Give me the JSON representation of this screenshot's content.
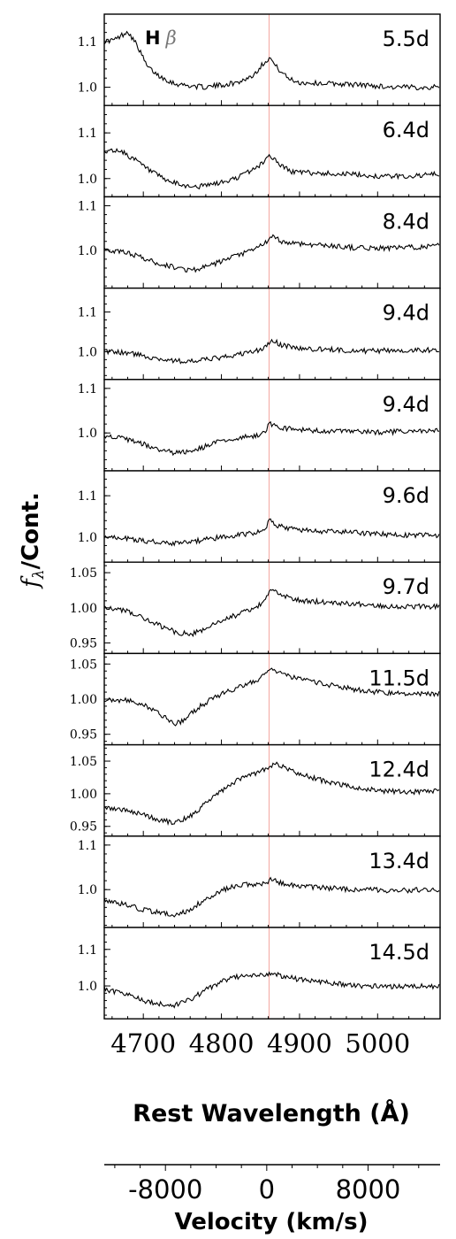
{
  "chart_data": {
    "type": "line",
    "line_label": {
      "bold": "H",
      "italic": "β"
    },
    "ylabel": {
      "symbol": "f",
      "subscript": "λ",
      "rest": "/Cont."
    },
    "xlabel": "Rest Wavelength (Å)",
    "xlim": [
      4650,
      5080
    ],
    "xticks": [
      4700,
      4800,
      4900,
      5000
    ],
    "reference_line": 4861,
    "velocity_axis": {
      "label": "Velocity (km/s)",
      "ticks": [
        {
          "value": -8000,
          "label": "-8000"
        },
        {
          "value": 0,
          "label": "0"
        },
        {
          "value": 8000,
          "label": "8000"
        }
      ],
      "range": [
        -12830,
        13690
      ]
    },
    "panels": [
      {
        "epoch": "5.5d",
        "ylim": [
          0.96,
          1.16
        ],
        "yticks": [
          1.0,
          1.1
        ],
        "yticklabels": [
          "1.0",
          "1.1"
        ],
        "profile": [
          [
            4650,
            1.1
          ],
          [
            4665,
            1.105
          ],
          [
            4680,
            1.123
          ],
          [
            4692,
            1.092
          ],
          [
            4705,
            1.045
          ],
          [
            4720,
            1.025
          ],
          [
            4740,
            1.008
          ],
          [
            4760,
            1.003
          ],
          [
            4780,
            1.0
          ],
          [
            4800,
            1.005
          ],
          [
            4820,
            1.01
          ],
          [
            4840,
            1.025
          ],
          [
            4855,
            1.055
          ],
          [
            4862,
            1.065
          ],
          [
            4870,
            1.045
          ],
          [
            4885,
            1.02
          ],
          [
            4900,
            1.01
          ],
          [
            4940,
            1.008
          ],
          [
            4980,
            1.005
          ],
          [
            5020,
            1.0
          ],
          [
            5080,
            1.0
          ]
        ]
      },
      {
        "epoch": "6.4d",
        "ylim": [
          0.96,
          1.16
        ],
        "yticks": [
          1.0,
          1.1
        ],
        "yticklabels": [
          "1.0",
          "1.1"
        ],
        "profile": [
          [
            4650,
            1.06
          ],
          [
            4670,
            1.062
          ],
          [
            4690,
            1.04
          ],
          [
            4710,
            1.015
          ],
          [
            4730,
            0.995
          ],
          [
            4750,
            0.985
          ],
          [
            4770,
            0.982
          ],
          [
            4790,
            0.988
          ],
          [
            4810,
            0.995
          ],
          [
            4830,
            1.01
          ],
          [
            4850,
            1.03
          ],
          [
            4862,
            1.052
          ],
          [
            4875,
            1.03
          ],
          [
            4890,
            1.015
          ],
          [
            4920,
            1.012
          ],
          [
            4960,
            1.01
          ],
          [
            5000,
            1.005
          ],
          [
            5040,
            1.005
          ],
          [
            5080,
            1.01
          ]
        ]
      },
      {
        "epoch": "8.4d",
        "ylim": [
          0.915,
          1.12
        ],
        "yticks": [
          1.0,
          1.1
        ],
        "yticklabels": [
          "1.0",
          "1.1"
        ],
        "profile": [
          [
            4650,
            1.0
          ],
          [
            4680,
            0.995
          ],
          [
            4700,
            0.982
          ],
          [
            4720,
            0.97
          ],
          [
            4740,
            0.962
          ],
          [
            4760,
            0.955
          ],
          [
            4780,
            0.962
          ],
          [
            4800,
            0.975
          ],
          [
            4820,
            0.988
          ],
          [
            4840,
            1.0
          ],
          [
            4855,
            1.015
          ],
          [
            4865,
            1.03
          ],
          [
            4880,
            1.018
          ],
          [
            4900,
            1.015
          ],
          [
            4940,
            1.01
          ],
          [
            4980,
            1.005
          ],
          [
            5020,
            1.005
          ],
          [
            5080,
            1.01
          ]
        ]
      },
      {
        "epoch": "9.4d",
        "ylim": [
          0.93,
          1.16
        ],
        "yticks": [
          1.0,
          1.1
        ],
        "yticklabels": [
          "1.0",
          "1.1"
        ],
        "profile": [
          [
            4650,
            1.0
          ],
          [
            4680,
            0.997
          ],
          [
            4700,
            0.99
          ],
          [
            4720,
            0.982
          ],
          [
            4740,
            0.977
          ],
          [
            4760,
            0.975
          ],
          [
            4780,
            0.98
          ],
          [
            4800,
            0.985
          ],
          [
            4820,
            0.992
          ],
          [
            4840,
            1.0
          ],
          [
            4855,
            1.008
          ],
          [
            4865,
            1.03
          ],
          [
            4875,
            1.018
          ],
          [
            4900,
            1.008
          ],
          [
            4940,
            1.005
          ],
          [
            4980,
            1.002
          ],
          [
            5020,
            1.003
          ],
          [
            5080,
            1.005
          ]
        ]
      },
      {
        "epoch": "9.4d",
        "ylim": [
          0.915,
          1.12
        ],
        "yticks": [
          1.0,
          1.1
        ],
        "yticklabels": [
          "1.0",
          "1.1"
        ],
        "profile": [
          [
            4650,
            0.995
          ],
          [
            4680,
            0.985
          ],
          [
            4700,
            0.975
          ],
          [
            4720,
            0.962
          ],
          [
            4740,
            0.955
          ],
          [
            4760,
            0.958
          ],
          [
            4780,
            0.97
          ],
          [
            4800,
            0.982
          ],
          [
            4820,
            0.988
          ],
          [
            4840,
            0.993
          ],
          [
            4855,
            1.0
          ],
          [
            4862,
            1.022
          ],
          [
            4870,
            1.015
          ],
          [
            4890,
            1.008
          ],
          [
            4920,
            1.005
          ],
          [
            4960,
            1.003
          ],
          [
            5000,
            1.002
          ],
          [
            5040,
            1.003
          ],
          [
            5080,
            1.005
          ]
        ]
      },
      {
        "epoch": "9.6d",
        "ylim": [
          0.94,
          1.16
        ],
        "yticks": [
          1.0,
          1.1
        ],
        "yticklabels": [
          "1.0",
          "1.1"
        ],
        "profile": [
          [
            4650,
            1.0
          ],
          [
            4680,
            0.997
          ],
          [
            4700,
            0.992
          ],
          [
            4720,
            0.988
          ],
          [
            4740,
            0.985
          ],
          [
            4760,
            0.988
          ],
          [
            4780,
            0.995
          ],
          [
            4800,
            1.0
          ],
          [
            4820,
            1.005
          ],
          [
            4840,
            1.01
          ],
          [
            4855,
            1.02
          ],
          [
            4862,
            1.04
          ],
          [
            4870,
            1.028
          ],
          [
            4890,
            1.02
          ],
          [
            4920,
            1.015
          ],
          [
            4960,
            1.012
          ],
          [
            5000,
            1.008
          ],
          [
            5040,
            1.005
          ],
          [
            5080,
            1.005
          ]
        ]
      },
      {
        "epoch": "9.7d",
        "ylim": [
          0.935,
          1.065
        ],
        "yticks": [
          0.95,
          1.0,
          1.05
        ],
        "yticklabels": [
          "0.95",
          "1.00",
          "1.05"
        ],
        "profile": [
          [
            4650,
            1.0
          ],
          [
            4680,
            0.995
          ],
          [
            4700,
            0.985
          ],
          [
            4720,
            0.975
          ],
          [
            4740,
            0.966
          ],
          [
            4760,
            0.962
          ],
          [
            4780,
            0.97
          ],
          [
            4800,
            0.982
          ],
          [
            4820,
            0.99
          ],
          [
            4840,
            0.998
          ],
          [
            4855,
            1.008
          ],
          [
            4864,
            1.028
          ],
          [
            4875,
            1.018
          ],
          [
            4900,
            1.01
          ],
          [
            4940,
            1.008
          ],
          [
            4980,
            1.005
          ],
          [
            5020,
            1.002
          ],
          [
            5080,
            1.002
          ]
        ]
      },
      {
        "epoch": "11.5d",
        "ylim": [
          0.935,
          1.065
        ],
        "yticks": [
          0.95,
          1.0,
          1.05
        ],
        "yticklabels": [
          "0.95",
          "1.00",
          "1.05"
        ],
        "profile": [
          [
            4650,
            1.0
          ],
          [
            4680,
            0.998
          ],
          [
            4700,
            0.992
          ],
          [
            4720,
            0.98
          ],
          [
            4740,
            0.965
          ],
          [
            4750,
            0.968
          ],
          [
            4770,
            0.988
          ],
          [
            4790,
            1.002
          ],
          [
            4810,
            1.012
          ],
          [
            4830,
            1.02
          ],
          [
            4850,
            1.03
          ],
          [
            4864,
            1.042
          ],
          [
            4880,
            1.035
          ],
          [
            4900,
            1.028
          ],
          [
            4940,
            1.02
          ],
          [
            4980,
            1.012
          ],
          [
            5020,
            1.008
          ],
          [
            5080,
            1.008
          ]
        ]
      },
      {
        "epoch": "12.4d",
        "ylim": [
          0.935,
          1.075
        ],
        "yticks": [
          0.95,
          1.0,
          1.05
        ],
        "yticklabels": [
          "0.95",
          "1.00",
          "1.05"
        ],
        "profile": [
          [
            4650,
            0.98
          ],
          [
            4680,
            0.975
          ],
          [
            4700,
            0.968
          ],
          [
            4720,
            0.96
          ],
          [
            4740,
            0.955
          ],
          [
            4760,
            0.965
          ],
          [
            4780,
            0.985
          ],
          [
            4800,
            1.005
          ],
          [
            4820,
            1.02
          ],
          [
            4840,
            1.03
          ],
          [
            4860,
            1.04
          ],
          [
            4870,
            1.045
          ],
          [
            4885,
            1.038
          ],
          [
            4900,
            1.03
          ],
          [
            4930,
            1.02
          ],
          [
            4960,
            1.012
          ],
          [
            5000,
            1.005
          ],
          [
            5040,
            1.002
          ],
          [
            5080,
            1.005
          ]
        ]
      },
      {
        "epoch": "13.4d",
        "ylim": [
          0.915,
          1.12
        ],
        "yticks": [
          1.0,
          1.1
        ],
        "yticklabels": [
          "1.0",
          "1.1"
        ],
        "profile": [
          [
            4650,
            0.975
          ],
          [
            4680,
            0.965
          ],
          [
            4700,
            0.955
          ],
          [
            4720,
            0.948
          ],
          [
            4740,
            0.942
          ],
          [
            4760,
            0.955
          ],
          [
            4780,
            0.98
          ],
          [
            4800,
            0.998
          ],
          [
            4820,
            1.01
          ],
          [
            4840,
            1.012
          ],
          [
            4855,
            1.015
          ],
          [
            4864,
            1.022
          ],
          [
            4880,
            1.012
          ],
          [
            4900,
            1.008
          ],
          [
            4940,
            1.003
          ],
          [
            4980,
            1.0
          ],
          [
            5020,
            0.998
          ],
          [
            5080,
            1.0
          ]
        ]
      },
      {
        "epoch": "14.5d",
        "ylim": [
          0.91,
          1.16
        ],
        "yticks": [
          1.0,
          1.1
        ],
        "yticklabels": [
          "1.0",
          "1.1"
        ],
        "profile": [
          [
            4650,
            0.992
          ],
          [
            4680,
            0.975
          ],
          [
            4700,
            0.96
          ],
          [
            4720,
            0.95
          ],
          [
            4740,
            0.948
          ],
          [
            4760,
            0.962
          ],
          [
            4780,
            0.99
          ],
          [
            4800,
            1.012
          ],
          [
            4820,
            1.025
          ],
          [
            4840,
            1.03
          ],
          [
            4855,
            1.03
          ],
          [
            4864,
            1.035
          ],
          [
            4880,
            1.025
          ],
          [
            4900,
            1.018
          ],
          [
            4940,
            1.008
          ],
          [
            4980,
            1.0
          ],
          [
            5020,
            0.998
          ],
          [
            5080,
            1.0
          ]
        ]
      }
    ]
  }
}
